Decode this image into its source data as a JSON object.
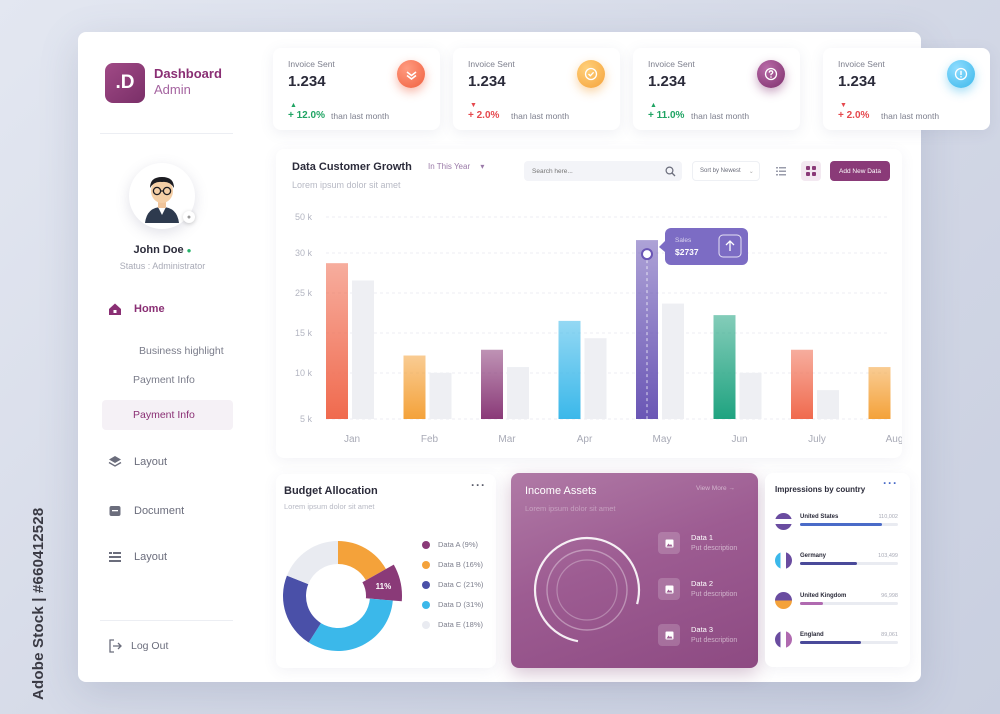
{
  "watermark": "Adobe Stock | #660412528",
  "brand": {
    "logo": ".D",
    "title": "Dashboard",
    "subtitle": "Admin"
  },
  "user": {
    "name": "John Doe",
    "status": "Status : Administrator"
  },
  "nav": {
    "home": "Home",
    "business": "Business highlight",
    "payment1": "Payment Info",
    "payment2": "Payment Info",
    "layout1": "Layout",
    "document": "Document",
    "layout2": "Layout",
    "logout": "Log Out"
  },
  "stats": [
    {
      "label": "Invoice Sent",
      "value": "1.234",
      "change": "+ 12.0%",
      "direction": "up",
      "compare": "than last month",
      "icon": "double-check-icon",
      "color": "#f0603f"
    },
    {
      "label": "Invoice Sent",
      "value": "1.234",
      "change": "+ 2.0%",
      "direction": "down",
      "compare": "than last month",
      "icon": "check-circle-icon",
      "color": "#f5a23a"
    },
    {
      "label": "Invoice Sent",
      "value": "1.234",
      "change": "+ 11.0%",
      "direction": "up",
      "compare": "than last month",
      "icon": "question-icon",
      "color": "#8a3a78"
    },
    {
      "label": "Invoice Sent",
      "value": "1.234",
      "change": "+ 2.0%",
      "direction": "down",
      "compare": "than last month",
      "icon": "exclamation-icon",
      "color": "#3bb8ea"
    }
  ],
  "colors": {
    "up": "#1fa463",
    "down": "#e5484d",
    "accent": "#8a3a78"
  },
  "growth": {
    "title": "Data Customer Growth",
    "subtitle": "Lorem ipsum dolor sit amet",
    "period": "In This Year",
    "search_placeholder": "Search here...",
    "sort": "Sort by Newest",
    "add_button": "Add New Data",
    "tooltip_label": "Sales",
    "tooltip_value": "$2737"
  },
  "chart_data": {
    "type": "bar",
    "categories": [
      "Jan",
      "Feb",
      "Mar",
      "Apr",
      "May",
      "Jun",
      "July",
      "Aug"
    ],
    "y_tick_labels": [
      "50 k",
      "30 k",
      "25 k",
      "15 k",
      "10 k",
      "5 k"
    ],
    "series": [
      {
        "values": [
          27,
          11,
          12,
          17,
          31,
          18,
          12,
          9
        ],
        "colors": [
          "#f06a4e",
          "#f4a23a",
          "#8a3a78",
          "#3bb8ea",
          "#6a56b5",
          "#1fa380",
          "#f06a4e",
          "#f4a23a"
        ]
      },
      {
        "values": [
          24,
          8,
          9,
          14,
          20,
          8,
          5,
          null
        ],
        "color": "#eeeff3"
      }
    ],
    "highlight": "May",
    "grid": true
  },
  "budget": {
    "title": "Budget Allocation",
    "subtitle": "Lorem ipsum dolor sit amet",
    "highlight_label": "11%",
    "slices": [
      {
        "label": "Data A (9%)",
        "value": 9,
        "color": "#8a3a78"
      },
      {
        "label": "Data B (16%)",
        "value": 16,
        "color": "#f4a23a"
      },
      {
        "label": "Data C (21%)",
        "value": 21,
        "color": "#4a50a8"
      },
      {
        "label": "Data D (31%)",
        "value": 31,
        "color": "#3bb8ea"
      },
      {
        "label": "Data E (18%)",
        "value": 18,
        "color": "#e9ebf1"
      }
    ]
  },
  "income": {
    "title": "Income Assets",
    "subtitle": "Lorem ipsum dolor sit amet",
    "view_more": "View More",
    "items": [
      {
        "title": "Data 1",
        "desc": "Put description"
      },
      {
        "title": "Data 2",
        "desc": "Put description"
      },
      {
        "title": "Data 3",
        "desc": "Put description"
      }
    ]
  },
  "countries": {
    "title": "Impressions by country",
    "rows": [
      {
        "name": "United States",
        "value": "110,002",
        "fill": 0.84,
        "color": "#4a6bc8"
      },
      {
        "name": "Germany",
        "value": "103,499",
        "fill": 0.58,
        "color": "#4a4a9a"
      },
      {
        "name": "United Kingdom",
        "value": "96,998",
        "fill": 0.23,
        "color": "#b06ab0"
      },
      {
        "name": "England",
        "value": "89,061",
        "fill": 0.62,
        "color": "#4a4a9a"
      }
    ]
  }
}
